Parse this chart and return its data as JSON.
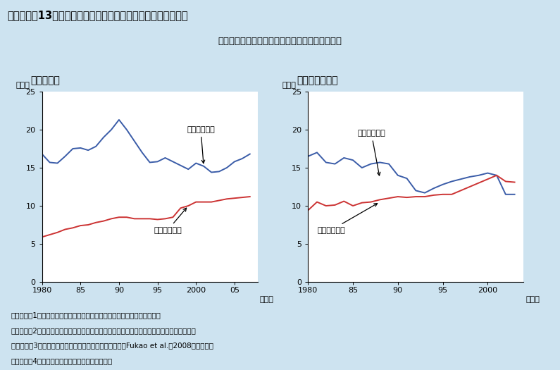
{
  "title_bar": "第２－３－13図　無形資産、有形資産投資（民間企業）の推移",
  "subtitle": "有形資産投資を依然下回る我が国の無形資産投資",
  "panel1_title": "（１）日本",
  "panel2_title": "（２）アメリカ",
  "ylabel": "（％）",
  "xlabel": "（年）",
  "bg_color": "#cde3f0",
  "title_bar_color": "#a8c8dc",
  "plot_bg_color": "#ffffff",
  "blue_color": "#3a5ca8",
  "red_color": "#cc3333",
  "japan_tangible_years": [
    1980,
    1981,
    1982,
    1983,
    1984,
    1985,
    1986,
    1987,
    1988,
    1989,
    1990,
    1991,
    1992,
    1993,
    1994,
    1995,
    1996,
    1997,
    1998,
    1999,
    2000,
    2001,
    2002,
    2003,
    2004,
    2005,
    2006,
    2007
  ],
  "japan_tangible": [
    16.8,
    15.7,
    15.6,
    16.5,
    17.5,
    17.6,
    17.3,
    17.8,
    19.0,
    20.0,
    21.3,
    20.0,
    18.5,
    17.0,
    15.7,
    15.8,
    16.3,
    15.8,
    15.3,
    14.8,
    15.6,
    15.2,
    14.4,
    14.5,
    15.0,
    15.8,
    16.2,
    16.8
  ],
  "japan_intangible_years": [
    1980,
    1981,
    1982,
    1983,
    1984,
    1985,
    1986,
    1987,
    1988,
    1989,
    1990,
    1991,
    1992,
    1993,
    1994,
    1995,
    1996,
    1997,
    1998,
    1999,
    2000,
    2001,
    2002,
    2003,
    2004,
    2005,
    2006,
    2007
  ],
  "japan_intangible": [
    5.9,
    6.2,
    6.5,
    6.9,
    7.1,
    7.4,
    7.5,
    7.8,
    8.0,
    8.3,
    8.5,
    8.5,
    8.3,
    8.3,
    8.3,
    8.2,
    8.3,
    8.5,
    9.7,
    10.0,
    10.5,
    10.5,
    10.5,
    10.7,
    10.9,
    11.0,
    11.1,
    11.2
  ],
  "us_tangible_years": [
    1980,
    1981,
    1982,
    1983,
    1984,
    1985,
    1986,
    1987,
    1988,
    1989,
    1990,
    1991,
    1992,
    1993,
    1994,
    1995,
    1996,
    1997,
    1998,
    1999,
    2000,
    2001,
    2002,
    2003
  ],
  "us_tangible": [
    16.5,
    17.0,
    15.7,
    15.5,
    16.3,
    16.0,
    15.0,
    15.5,
    15.7,
    15.5,
    14.0,
    13.6,
    12.0,
    11.7,
    12.3,
    12.8,
    13.2,
    13.5,
    13.8,
    14.0,
    14.3,
    14.0,
    11.5,
    11.5
  ],
  "us_intangible_years": [
    1980,
    1981,
    1982,
    1983,
    1984,
    1985,
    1986,
    1987,
    1988,
    1989,
    1990,
    1991,
    1992,
    1993,
    1994,
    1995,
    1996,
    1997,
    1998,
    1999,
    2000,
    2001,
    2002,
    2003
  ],
  "us_intangible": [
    9.4,
    10.5,
    10.0,
    10.1,
    10.6,
    10.0,
    10.4,
    10.5,
    10.8,
    11.0,
    11.2,
    11.1,
    11.2,
    11.2,
    11.4,
    11.5,
    11.5,
    12.0,
    12.5,
    13.0,
    13.5,
    14.0,
    13.2,
    13.1
  ],
  "footnote_lines": [
    "（備考）　1．日本の無形資産は内閣府推計。推計方法は付注２－３参照。",
    "　　　　　2．日本の有形固定資産は、内閣府「国民経済計算」の民間設備投資により作成。",
    "　　　　　3．アメリカの有形固定資産、無形資産投資はFukao et al.（2008）による。",
    "　　　　　4．日本、アメリカのいずれも名目値。"
  ]
}
